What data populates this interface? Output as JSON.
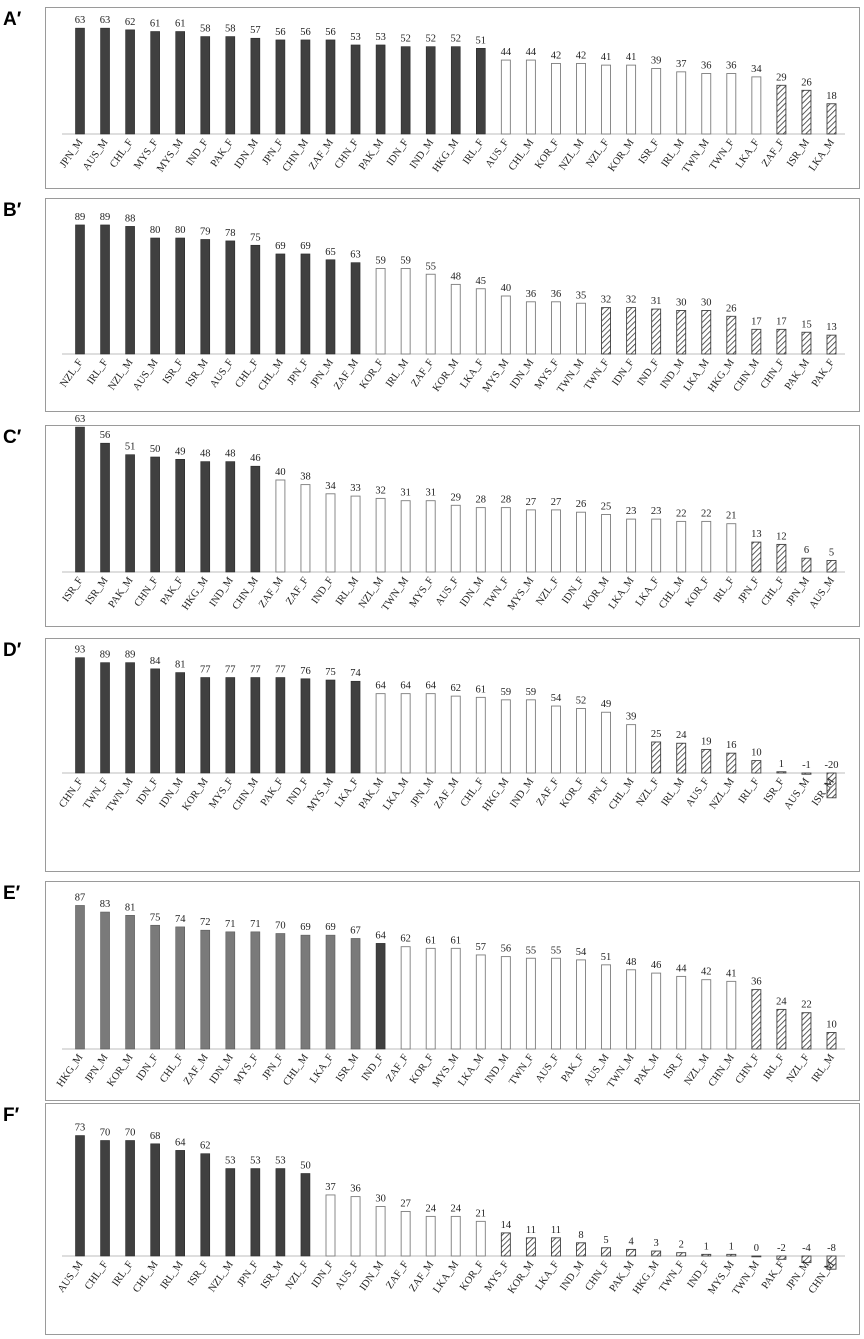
{
  "figure": {
    "panels": [
      "A′",
      "B′",
      "C′",
      "D′",
      "E′",
      "F′"
    ]
  },
  "colors": {
    "solid": "#404040",
    "solid_gray": "#7a7a7a",
    "open_outline": "#7d7d7d",
    "hatch": "#404040",
    "frame": "#9a9a9a"
  },
  "chart_data": [
    {
      "type": "bar",
      "panel": "A′",
      "categories": [
        "JPN_M",
        "AUS_M",
        "CHL_F",
        "MYS_F",
        "MYS_M",
        "IND_F",
        "PAK_F",
        "IDN_M",
        "JPN_F",
        "CHN_M",
        "ZAF_M",
        "CHN_F",
        "PAK_M",
        "IDN_F",
        "IND_M",
        "HKG_M",
        "IRL_F",
        "AUS_F",
        "CHL_M",
        "KOR_F",
        "NZL_M",
        "NZL_F",
        "KOR_M",
        "ISR_F",
        "IRL_M",
        "TWN_M",
        "TWN_F",
        "LKA_F",
        "ZAF_F",
        "ISR_M",
        "LKA_M"
      ],
      "values": [
        63,
        63,
        62,
        61,
        61,
        58,
        58,
        57,
        56,
        56,
        56,
        53,
        53,
        52,
        52,
        52,
        51,
        44,
        44,
        42,
        42,
        41,
        41,
        39,
        37,
        36,
        36,
        34,
        29,
        26,
        18
      ],
      "styles": [
        "solid",
        "solid",
        "solid",
        "solid",
        "solid",
        "solid",
        "solid",
        "solid",
        "solid",
        "solid",
        "solid",
        "solid",
        "solid",
        "solid",
        "solid",
        "solid",
        "solid",
        "open",
        "open",
        "open",
        "open",
        "open",
        "open",
        "open",
        "open",
        "open",
        "open",
        "open",
        "hatch",
        "hatch",
        "hatch"
      ]
    },
    {
      "type": "bar",
      "panel": "B′",
      "categories": [
        "NZL_F",
        "IRL_F",
        "NZL_M",
        "AUS_M",
        "ISR_F",
        "ISR_M",
        "AUS_F",
        "CHL_F",
        "CHL_M",
        "JPN_F",
        "JPN_M",
        "ZAF_M",
        "KOR_F",
        "IRL_M",
        "ZAF_F",
        "KOR_M",
        "LKA_F",
        "MYS_M",
        "IDN_M",
        "MYS_F",
        "TWN_M",
        "TWN_F",
        "IDN_F",
        "IND_F",
        "IND_M",
        "LKA_M",
        "HKG_M",
        "CHN_M",
        "CHN_F",
        "PAK_M",
        "PAK_F"
      ],
      "values": [
        89,
        89,
        88,
        80,
        80,
        79,
        78,
        75,
        69,
        69,
        65,
        63,
        59,
        59,
        55,
        48,
        45,
        40,
        36,
        36,
        35,
        32,
        32,
        31,
        30,
        30,
        26,
        17,
        17,
        15,
        13
      ],
      "styles": [
        "solid",
        "solid",
        "solid",
        "solid",
        "solid",
        "solid",
        "solid",
        "solid",
        "solid",
        "solid",
        "solid",
        "solid",
        "open",
        "open",
        "open",
        "open",
        "open",
        "open",
        "open",
        "open",
        "open",
        "hatch",
        "hatch",
        "hatch",
        "hatch",
        "hatch",
        "hatch",
        "hatch",
        "hatch",
        "hatch",
        "hatch"
      ]
    },
    {
      "type": "bar",
      "panel": "C′",
      "categories": [
        "ISR_F",
        "ISR_M",
        "PAK_M",
        "CHN_F",
        "PAK_F",
        "HKG_M",
        "IND_M",
        "CHN_M",
        "ZAF_M",
        "ZAF_F",
        "IND_F",
        "IRL_M",
        "NZL_M",
        "TWN_M",
        "MYS_F",
        "AUS_F",
        "IDN_M",
        "TWN_F",
        "MYS_M",
        "NZL_F",
        "IDN_F",
        "KOR_M",
        "LKA_M",
        "LKA_F",
        "CHL_M",
        "KOR_F",
        "IRL_F",
        "JPN_F",
        "CHL_F",
        "JPN_M",
        "AUS_M"
      ],
      "values": [
        63,
        56,
        51,
        50,
        49,
        48,
        48,
        46,
        40,
        38,
        34,
        33,
        32,
        31,
        31,
        29,
        28,
        28,
        27,
        27,
        26,
        25,
        23,
        23,
        22,
        22,
        21,
        13,
        12,
        6,
        5
      ],
      "styles": [
        "solid",
        "solid",
        "solid",
        "solid",
        "solid",
        "solid",
        "solid",
        "solid",
        "open",
        "open",
        "open",
        "open",
        "open",
        "open",
        "open",
        "open",
        "open",
        "open",
        "open",
        "open",
        "open",
        "open",
        "open",
        "open",
        "open",
        "open",
        "open",
        "hatch",
        "hatch",
        "hatch",
        "hatch"
      ]
    },
    {
      "type": "bar",
      "panel": "D′",
      "categories": [
        "CHN_F",
        "TWN_F",
        "TWN_M",
        "IDN_F",
        "IDN_M",
        "KOR_M",
        "MYS_F",
        "CHN_M",
        "PAK_F",
        "IND_F",
        "MYS_M",
        "LKA_F",
        "PAK_M",
        "LKA_M",
        "JPN_M",
        "ZAF_M",
        "CHL_F",
        "HKG_M",
        "IND_M",
        "ZAF_F",
        "KOR_F",
        "JPN_F",
        "CHL_M",
        "NZL_F",
        "IRL_M",
        "AUS_F",
        "NZL_M",
        "IRL_F",
        "ISR_F",
        "AUS_M",
        "ISR_M"
      ],
      "values": [
        93,
        89,
        89,
        84,
        81,
        77,
        77,
        77,
        77,
        76,
        75,
        74,
        64,
        64,
        64,
        62,
        61,
        59,
        59,
        54,
        52,
        49,
        39,
        25,
        24,
        19,
        16,
        10,
        1,
        -1,
        -20
      ],
      "styles": [
        "solid",
        "solid",
        "solid",
        "solid",
        "solid",
        "solid",
        "solid",
        "solid",
        "solid",
        "solid",
        "solid",
        "solid",
        "open",
        "open",
        "open",
        "open",
        "open",
        "open",
        "open",
        "open",
        "open",
        "open",
        "open",
        "hatch",
        "hatch",
        "hatch",
        "hatch",
        "hatch",
        "hatch",
        "hatch",
        "hatch"
      ]
    },
    {
      "type": "bar",
      "panel": "E′",
      "categories": [
        "HKG_M",
        "JPN_M",
        "KOR_M",
        "IDN_F",
        "CHL_F",
        "ZAF_M",
        "IDN_M",
        "MYS_F",
        "JPN_F",
        "CHL_M",
        "LKA_F",
        "ISR_M",
        "IND_F",
        "ZAF_F",
        "KOR_F",
        "MYS_M",
        "LKA_M",
        "IND_M",
        "TWN_F",
        "AUS_F",
        "PAK_F",
        "AUS_M",
        "TWN_M",
        "PAK_M",
        "ISR_F",
        "NZL_M",
        "CHN_M",
        "CHN_F",
        "IRL_F",
        "NZL_F",
        "IRL_M"
      ],
      "values": [
        87,
        83,
        81,
        75,
        74,
        72,
        71,
        71,
        70,
        69,
        69,
        67,
        64,
        62,
        61,
        61,
        57,
        56,
        55,
        55,
        54,
        51,
        48,
        46,
        44,
        42,
        41,
        36,
        24,
        22,
        10
      ],
      "styles": [
        "solid_gray",
        "solid_gray",
        "solid_gray",
        "solid_gray",
        "solid_gray",
        "solid_gray",
        "solid_gray",
        "solid_gray",
        "solid_gray",
        "solid_gray",
        "solid_gray",
        "solid_gray",
        "solid",
        "open",
        "open",
        "open",
        "open",
        "open",
        "open",
        "open",
        "open",
        "open",
        "open",
        "open",
        "open",
        "open",
        "open",
        "hatch",
        "hatch",
        "hatch",
        "hatch"
      ]
    },
    {
      "type": "bar",
      "panel": "F′",
      "categories": [
        "AUS_M",
        "CHL_F",
        "IRL_F",
        "CHL_M",
        "IRL_M",
        "ISR_F",
        "NZL_M",
        "JPN_F",
        "ISR_M",
        "NZL_F",
        "IDN_F",
        "AUS_F",
        "IDN_M",
        "ZAF_F",
        "ZAF_M",
        "LKA_M",
        "KOR_F",
        "MYS_F",
        "KOR_M",
        "LKA_F",
        "IND_M",
        "CHN_F",
        "PAK_M",
        "HKG_M",
        "TWN_F",
        "IND_F",
        "MYS_M",
        "TWN_M",
        "PAK_F",
        "JPN_M",
        "CHN_M"
      ],
      "values": [
        73,
        70,
        70,
        68,
        64,
        62,
        53,
        53,
        53,
        50,
        37,
        36,
        30,
        27,
        24,
        24,
        21,
        14,
        11,
        11,
        8,
        5,
        4,
        3,
        2,
        1,
        1,
        0,
        -2,
        -4,
        -8
      ],
      "styles": [
        "solid",
        "solid",
        "solid",
        "solid",
        "solid",
        "solid",
        "solid",
        "solid",
        "solid",
        "solid",
        "open",
        "open",
        "open",
        "open",
        "open",
        "open",
        "open",
        "hatch",
        "hatch",
        "hatch",
        "hatch",
        "hatch",
        "hatch",
        "hatch",
        "hatch",
        "hatch",
        "hatch",
        "hatch",
        "hatch",
        "hatch",
        "hatch"
      ]
    }
  ]
}
